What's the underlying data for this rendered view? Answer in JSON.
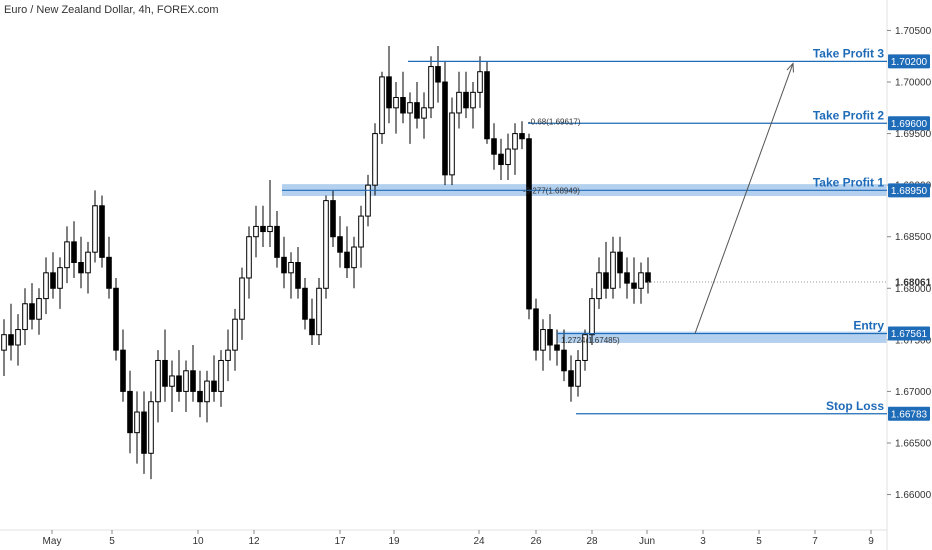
{
  "chart_data": {
    "type": "candlestick",
    "title": "Euro / New Zealand Dollar, 4h, FOREX.com",
    "ylim": [
      1.6585,
      1.7065
    ],
    "y_ticks": [
      "1.70500",
      "1.70000",
      "1.69500",
      "1.69000",
      "1.68500",
      "1.68000",
      "1.67500",
      "1.67000",
      "1.66500",
      "1.66000"
    ],
    "x_ticks": [
      "May",
      "5",
      "10",
      "12",
      "17",
      "19",
      "24",
      "26",
      "28",
      "Jun",
      "3",
      "5",
      "7",
      "9"
    ],
    "current_price": "1.68061",
    "candles": [
      {
        "o": 1.674,
        "h": 1.677,
        "l": 1.6715,
        "c": 1.6755
      },
      {
        "o": 1.6755,
        "h": 1.6785,
        "l": 1.673,
        "c": 1.6745
      },
      {
        "o": 1.6745,
        "h": 1.6775,
        "l": 1.6725,
        "c": 1.676
      },
      {
        "o": 1.676,
        "h": 1.68,
        "l": 1.6745,
        "c": 1.6785
      },
      {
        "o": 1.6785,
        "h": 1.6805,
        "l": 1.676,
        "c": 1.677
      },
      {
        "o": 1.677,
        "h": 1.68,
        "l": 1.6755,
        "c": 1.679
      },
      {
        "o": 1.679,
        "h": 1.683,
        "l": 1.6775,
        "c": 1.6815
      },
      {
        "o": 1.6815,
        "h": 1.6835,
        "l": 1.679,
        "c": 1.68
      },
      {
        "o": 1.68,
        "h": 1.683,
        "l": 1.678,
        "c": 1.682
      },
      {
        "o": 1.682,
        "h": 1.686,
        "l": 1.6805,
        "c": 1.6845
      },
      {
        "o": 1.6845,
        "h": 1.6865,
        "l": 1.681,
        "c": 1.6825
      },
      {
        "o": 1.6825,
        "h": 1.685,
        "l": 1.68,
        "c": 1.6815
      },
      {
        "o": 1.6815,
        "h": 1.6845,
        "l": 1.6795,
        "c": 1.6835
      },
      {
        "o": 1.6835,
        "h": 1.6895,
        "l": 1.6825,
        "c": 1.688
      },
      {
        "o": 1.688,
        "h": 1.689,
        "l": 1.682,
        "c": 1.683
      },
      {
        "o": 1.683,
        "h": 1.685,
        "l": 1.679,
        "c": 1.68
      },
      {
        "o": 1.68,
        "h": 1.681,
        "l": 1.673,
        "c": 1.674
      },
      {
        "o": 1.674,
        "h": 1.676,
        "l": 1.669,
        "c": 1.67
      },
      {
        "o": 1.67,
        "h": 1.672,
        "l": 1.664,
        "c": 1.666
      },
      {
        "o": 1.666,
        "h": 1.67,
        "l": 1.663,
        "c": 1.668
      },
      {
        "o": 1.668,
        "h": 1.67,
        "l": 1.662,
        "c": 1.664
      },
      {
        "o": 1.664,
        "h": 1.67,
        "l": 1.6615,
        "c": 1.669
      },
      {
        "o": 1.669,
        "h": 1.674,
        "l": 1.667,
        "c": 1.673
      },
      {
        "o": 1.673,
        "h": 1.676,
        "l": 1.669,
        "c": 1.6705
      },
      {
        "o": 1.6705,
        "h": 1.673,
        "l": 1.668,
        "c": 1.6715
      },
      {
        "o": 1.6715,
        "h": 1.674,
        "l": 1.669,
        "c": 1.67
      },
      {
        "o": 1.67,
        "h": 1.673,
        "l": 1.668,
        "c": 1.672
      },
      {
        "o": 1.672,
        "h": 1.6745,
        "l": 1.669,
        "c": 1.67
      },
      {
        "o": 1.67,
        "h": 1.672,
        "l": 1.6675,
        "c": 1.669
      },
      {
        "o": 1.669,
        "h": 1.672,
        "l": 1.667,
        "c": 1.671
      },
      {
        "o": 1.671,
        "h": 1.6735,
        "l": 1.669,
        "c": 1.67
      },
      {
        "o": 1.67,
        "h": 1.674,
        "l": 1.6685,
        "c": 1.673
      },
      {
        "o": 1.673,
        "h": 1.676,
        "l": 1.671,
        "c": 1.674
      },
      {
        "o": 1.674,
        "h": 1.678,
        "l": 1.672,
        "c": 1.677
      },
      {
        "o": 1.677,
        "h": 1.682,
        "l": 1.675,
        "c": 1.681
      },
      {
        "o": 1.681,
        "h": 1.686,
        "l": 1.679,
        "c": 1.685
      },
      {
        "o": 1.685,
        "h": 1.688,
        "l": 1.683,
        "c": 1.686
      },
      {
        "o": 1.686,
        "h": 1.688,
        "l": 1.684,
        "c": 1.6855
      },
      {
        "o": 1.6855,
        "h": 1.6905,
        "l": 1.684,
        "c": 1.686
      },
      {
        "o": 1.686,
        "h": 1.6875,
        "l": 1.682,
        "c": 1.683
      },
      {
        "o": 1.683,
        "h": 1.685,
        "l": 1.68,
        "c": 1.6815
      },
      {
        "o": 1.6815,
        "h": 1.6835,
        "l": 1.679,
        "c": 1.6825
      },
      {
        "o": 1.6825,
        "h": 1.684,
        "l": 1.679,
        "c": 1.68
      },
      {
        "o": 1.68,
        "h": 1.681,
        "l": 1.676,
        "c": 1.677
      },
      {
        "o": 1.677,
        "h": 1.679,
        "l": 1.6745,
        "c": 1.6755
      },
      {
        "o": 1.6755,
        "h": 1.681,
        "l": 1.6745,
        "c": 1.68
      },
      {
        "o": 1.68,
        "h": 1.689,
        "l": 1.679,
        "c": 1.6885
      },
      {
        "o": 1.6885,
        "h": 1.6895,
        "l": 1.684,
        "c": 1.685
      },
      {
        "o": 1.685,
        "h": 1.687,
        "l": 1.682,
        "c": 1.6835
      },
      {
        "o": 1.6835,
        "h": 1.686,
        "l": 1.681,
        "c": 1.682
      },
      {
        "o": 1.682,
        "h": 1.685,
        "l": 1.68,
        "c": 1.684
      },
      {
        "o": 1.684,
        "h": 1.688,
        "l": 1.682,
        "c": 1.687
      },
      {
        "o": 1.687,
        "h": 1.691,
        "l": 1.686,
        "c": 1.69
      },
      {
        "o": 1.69,
        "h": 1.696,
        "l": 1.689,
        "c": 1.695
      },
      {
        "o": 1.695,
        "h": 1.701,
        "l": 1.694,
        "c": 1.7005
      },
      {
        "o": 1.7005,
        "h": 1.7035,
        "l": 1.696,
        "c": 1.6975
      },
      {
        "o": 1.6975,
        "h": 1.7,
        "l": 1.695,
        "c": 1.6985
      },
      {
        "o": 1.6985,
        "h": 1.701,
        "l": 1.696,
        "c": 1.697
      },
      {
        "o": 1.697,
        "h": 1.699,
        "l": 1.694,
        "c": 1.698
      },
      {
        "o": 1.698,
        "h": 1.7,
        "l": 1.6955,
        "c": 1.6965
      },
      {
        "o": 1.6965,
        "h": 1.699,
        "l": 1.6945,
        "c": 1.6975
      },
      {
        "o": 1.6975,
        "h": 1.7025,
        "l": 1.6965,
        "c": 1.7015
      },
      {
        "o": 1.7015,
        "h": 1.7035,
        "l": 1.698,
        "c": 1.7
      },
      {
        "o": 1.7,
        "h": 1.702,
        "l": 1.69,
        "c": 1.691
      },
      {
        "o": 1.691,
        "h": 1.6985,
        "l": 1.69,
        "c": 1.697
      },
      {
        "o": 1.697,
        "h": 1.701,
        "l": 1.6955,
        "c": 1.699
      },
      {
        "o": 1.699,
        "h": 1.701,
        "l": 1.6965,
        "c": 1.6975
      },
      {
        "o": 1.6975,
        "h": 1.7,
        "l": 1.6955,
        "c": 1.699
      },
      {
        "o": 1.699,
        "h": 1.7025,
        "l": 1.6975,
        "c": 1.701
      },
      {
        "o": 1.701,
        "h": 1.702,
        "l": 1.694,
        "c": 1.6945
      },
      {
        "o": 1.6945,
        "h": 1.696,
        "l": 1.6915,
        "c": 1.693
      },
      {
        "o": 1.693,
        "h": 1.6945,
        "l": 1.6905,
        "c": 1.692
      },
      {
        "o": 1.692,
        "h": 1.695,
        "l": 1.6905,
        "c": 1.6935
      },
      {
        "o": 1.6935,
        "h": 1.696,
        "l": 1.691,
        "c": 1.695
      },
      {
        "o": 1.695,
        "h": 1.6962,
        "l": 1.6935,
        "c": 1.6945
      },
      {
        "o": 1.6945,
        "h": 1.695,
        "l": 1.677,
        "c": 1.678
      },
      {
        "o": 1.678,
        "h": 1.679,
        "l": 1.673,
        "c": 1.674
      },
      {
        "o": 1.674,
        "h": 1.677,
        "l": 1.672,
        "c": 1.676
      },
      {
        "o": 1.676,
        "h": 1.6775,
        "l": 1.673,
        "c": 1.6745
      },
      {
        "o": 1.6745,
        "h": 1.676,
        "l": 1.6725,
        "c": 1.674
      },
      {
        "o": 1.674,
        "h": 1.676,
        "l": 1.671,
        "c": 1.672
      },
      {
        "o": 1.672,
        "h": 1.6735,
        "l": 1.669,
        "c": 1.6705
      },
      {
        "o": 1.6705,
        "h": 1.674,
        "l": 1.6695,
        "c": 1.673
      },
      {
        "o": 1.673,
        "h": 1.676,
        "l": 1.672,
        "c": 1.6755
      },
      {
        "o": 1.6755,
        "h": 1.68,
        "l": 1.6745,
        "c": 1.679
      },
      {
        "o": 1.679,
        "h": 1.683,
        "l": 1.678,
        "c": 1.6815
      },
      {
        "o": 1.6815,
        "h": 1.6845,
        "l": 1.679,
        "c": 1.68
      },
      {
        "o": 1.68,
        "h": 1.685,
        "l": 1.679,
        "c": 1.6835
      },
      {
        "o": 1.6835,
        "h": 1.685,
        "l": 1.68,
        "c": 1.6815
      },
      {
        "o": 1.6815,
        "h": 1.683,
        "l": 1.679,
        "c": 1.6805
      },
      {
        "o": 1.6805,
        "h": 1.683,
        "l": 1.6785,
        "c": 1.68
      },
      {
        "o": 1.68,
        "h": 1.6825,
        "l": 1.6785,
        "c": 1.6815
      },
      {
        "o": 1.6815,
        "h": 1.683,
        "l": 1.6795,
        "c": 1.6806
      }
    ],
    "levels": [
      {
        "label": "Take Profit 3",
        "price": 1.702,
        "box": "1.70200",
        "color": "#1e6bb8"
      },
      {
        "label": "Take Profit 2",
        "price": 1.696,
        "box": "1.69600",
        "color": "#1e6bb8"
      },
      {
        "label": "Take Profit 1",
        "price": 1.6895,
        "box": "1.68950",
        "color": "#1e6bb8"
      },
      {
        "label": "Entry",
        "price": 1.67561,
        "box": "1.67561",
        "color": "#1e6bb8"
      },
      {
        "label": "Stop Loss",
        "price": 1.66783,
        "box": "1.66783",
        "color": "#1e6bb8"
      }
    ],
    "fib_labels": [
      {
        "text": "-0.68(1.69617)",
        "price": 1.69617
      },
      {
        "text": "-0.277(1.68949)",
        "price": 1.68949
      },
      {
        "text": "1.2724(1.67485)",
        "price": 1.675
      }
    ],
    "colors": {
      "bull": "#ffffff",
      "bear": "#000000",
      "level": "#1e6bb8",
      "zone": "#b3d0ee",
      "current": "#333333"
    }
  }
}
